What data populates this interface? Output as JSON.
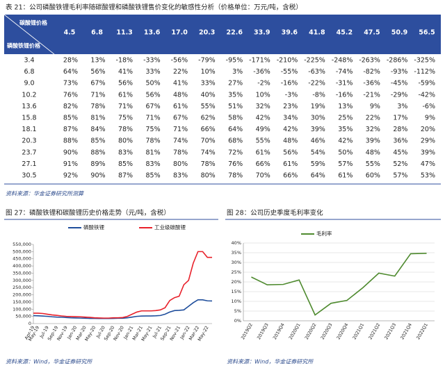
{
  "table": {
    "title": "表 21：公司磷酸铁锂毛利率随碳酸锂和磷酸铁锂售价变化的敏感性分析（价格单位：万元/吨，含税）",
    "col_header": "碳酸锂价格",
    "row_header": "磷酸铁锂价格",
    "columns": [
      "4.5",
      "6.8",
      "11.3",
      "13.6",
      "17.0",
      "20.3",
      "22.6",
      "33.9",
      "39.6",
      "41.8",
      "45.2",
      "47.5",
      "50.9",
      "56.5"
    ],
    "rows": [
      {
        "label": "3.4",
        "cells": [
          "28%",
          "13%",
          "-18%",
          "-33%",
          "-56%",
          "-79%",
          "-95%",
          "-171%",
          "-210%",
          "-225%",
          "-248%",
          "-263%",
          "-286%",
          "-325%"
        ]
      },
      {
        "label": "6.8",
        "cells": [
          "64%",
          "56%",
          "41%",
          "33%",
          "22%",
          "10%",
          "3%",
          "-36%",
          "-55%",
          "-63%",
          "-74%",
          "-82%",
          "-93%",
          "-112%"
        ]
      },
      {
        "label": "9.0",
        "cells": [
          "73%",
          "67%",
          "56%",
          "50%",
          "41%",
          "33%",
          "27%",
          "-2%",
          "-16%",
          "-22%",
          "-31%",
          "-36%",
          "-45%",
          "-59%"
        ]
      },
      {
        "label": "10.2",
        "cells": [
          "76%",
          "71%",
          "61%",
          "56%",
          "48%",
          "40%",
          "35%",
          "10%",
          "-3%",
          "-8%",
          "-16%",
          "-21%",
          "-29%",
          "-42%"
        ]
      },
      {
        "label": "13.6",
        "cells": [
          "82%",
          "78%",
          "71%",
          "67%",
          "61%",
          "55%",
          "51%",
          "32%",
          "23%",
          "19%",
          "13%",
          "9%",
          "3%",
          "-6%"
        ]
      },
      {
        "label": "15.8",
        "cells": [
          "85%",
          "81%",
          "75%",
          "71%",
          "67%",
          "62%",
          "58%",
          "42%",
          "34%",
          "30%",
          "25%",
          "22%",
          "17%",
          "9%"
        ]
      },
      {
        "label": "18.1",
        "cells": [
          "87%",
          "84%",
          "78%",
          "75%",
          "71%",
          "66%",
          "64%",
          "49%",
          "42%",
          "39%",
          "35%",
          "32%",
          "28%",
          "20%"
        ]
      },
      {
        "label": "20.3",
        "cells": [
          "88%",
          "85%",
          "80%",
          "78%",
          "74%",
          "70%",
          "68%",
          "55%",
          "48%",
          "46%",
          "42%",
          "39%",
          "36%",
          "29%"
        ]
      },
      {
        "label": "23.7",
        "cells": [
          "90%",
          "88%",
          "83%",
          "81%",
          "78%",
          "74%",
          "72%",
          "61%",
          "56%",
          "54%",
          "50%",
          "48%",
          "45%",
          "39%"
        ]
      },
      {
        "label": "27.1",
        "cells": [
          "91%",
          "89%",
          "85%",
          "83%",
          "80%",
          "78%",
          "76%",
          "66%",
          "61%",
          "59%",
          "57%",
          "55%",
          "52%",
          "47%"
        ]
      },
      {
        "label": "30.5",
        "cells": [
          "92%",
          "90%",
          "87%",
          "85%",
          "83%",
          "80%",
          "78%",
          "70%",
          "66%",
          "64%",
          "61%",
          "60%",
          "57%",
          "53%"
        ]
      }
    ],
    "source": "资料来源：华金证券研究所测算"
  },
  "chart_data": [
    {
      "type": "line",
      "title": "图 27：磷酸铁锂和碳酸锂历史价格走势（元/吨，含税）",
      "source": "资料来源：Wind，华金证券研究所",
      "grid": false,
      "categories": [
        "Apr-19",
        "May-19",
        null,
        "Jul-19",
        null,
        "Sep-19",
        null,
        "Nov-19",
        null,
        "Jan-20",
        null,
        "Mar-20",
        null,
        "May-20",
        null,
        "Jul-20",
        null,
        "Sep-20",
        null,
        "Nov-20",
        null,
        "Jan-21",
        null,
        "Mar-21",
        null,
        "May-21",
        null,
        "Jul-21",
        null,
        "Sep-21",
        null,
        "Nov-21",
        null,
        "Jan-22",
        null,
        "Mar-22",
        null,
        "May-22",
        null
      ],
      "ylim": [
        0,
        550000
      ],
      "yticks": [
        0,
        {
          "value": 50000,
          "label": "50,000"
        },
        {
          "value": 100000,
          "label": "100,000"
        },
        {
          "value": 150000,
          "label": "150,000"
        },
        {
          "value": 200000,
          "label": "200,000"
        },
        {
          "value": 250000,
          "label": "250,000"
        },
        {
          "value": 300000,
          "label": "300,000"
        },
        {
          "value": 350000,
          "label": "350,000"
        },
        {
          "value": 400000,
          "label": "400,000"
        },
        {
          "value": 450000,
          "label": "450,000"
        },
        {
          "value": 500000,
          "label": "500,000"
        },
        {
          "value": 550000,
          "label": "550,000"
        }
      ],
      "series": [
        {
          "name": "磷酸铁锂",
          "color": "#1f4e9c",
          "values": [
            55000,
            54000,
            52000,
            50000,
            47000,
            45000,
            44000,
            42000,
            40000,
            39000,
            38000,
            37000,
            36000,
            36000,
            35000,
            35000,
            35000,
            36000,
            37000,
            37000,
            40000,
            45000,
            50000,
            52000,
            53000,
            53000,
            54000,
            56000,
            65000,
            80000,
            90000,
            92000,
            95000,
            120000,
            145000,
            165000,
            165000,
            158000,
            157000
          ]
        },
        {
          "name": "工业级碳酸锂",
          "color": "#e8202a",
          "values": [
            72000,
            72000,
            70000,
            65000,
            60000,
            57000,
            53000,
            50000,
            49000,
            48000,
            47000,
            45000,
            43000,
            40000,
            39000,
            38000,
            38000,
            40000,
            40000,
            42000,
            50000,
            65000,
            80000,
            88000,
            88000,
            88000,
            90000,
            95000,
            110000,
            160000,
            180000,
            190000,
            270000,
            300000,
            420000,
            500000,
            500000,
            460000,
            460000
          ]
        }
      ]
    },
    {
      "type": "line",
      "title": "图 28：公司历史季度毛利率变化",
      "source": "资料来源：Wind，华金证券研究所",
      "grid": true,
      "categories": [
        "2019Q2",
        "2019Q3",
        "2019Q4",
        "2020Q1",
        "2020Q2",
        "2020Q3",
        "2020Q4",
        "2021Q1",
        "2021Q2",
        "2021Q3",
        "2021Q4",
        "2022Q1"
      ],
      "ylim": [
        0,
        40
      ],
      "yticks": [
        {
          "value": 0,
          "label": "0%"
        },
        {
          "value": 5,
          "label": "5%"
        },
        {
          "value": 10,
          "label": "10%"
        },
        {
          "value": 15,
          "label": "15%"
        },
        {
          "value": 20,
          "label": "20%"
        },
        {
          "value": 25,
          "label": "25%"
        },
        {
          "value": 30,
          "label": "30%"
        },
        {
          "value": 35,
          "label": "35%"
        },
        {
          "value": 40,
          "label": "40%"
        }
      ],
      "series": [
        {
          "name": "毛利率",
          "color": "#4e8a2e",
          "values": [
            22.5,
            18.5,
            18.7,
            21,
            3,
            9,
            10.5,
            17,
            24.5,
            23,
            34.5,
            34.7
          ]
        }
      ]
    }
  ]
}
